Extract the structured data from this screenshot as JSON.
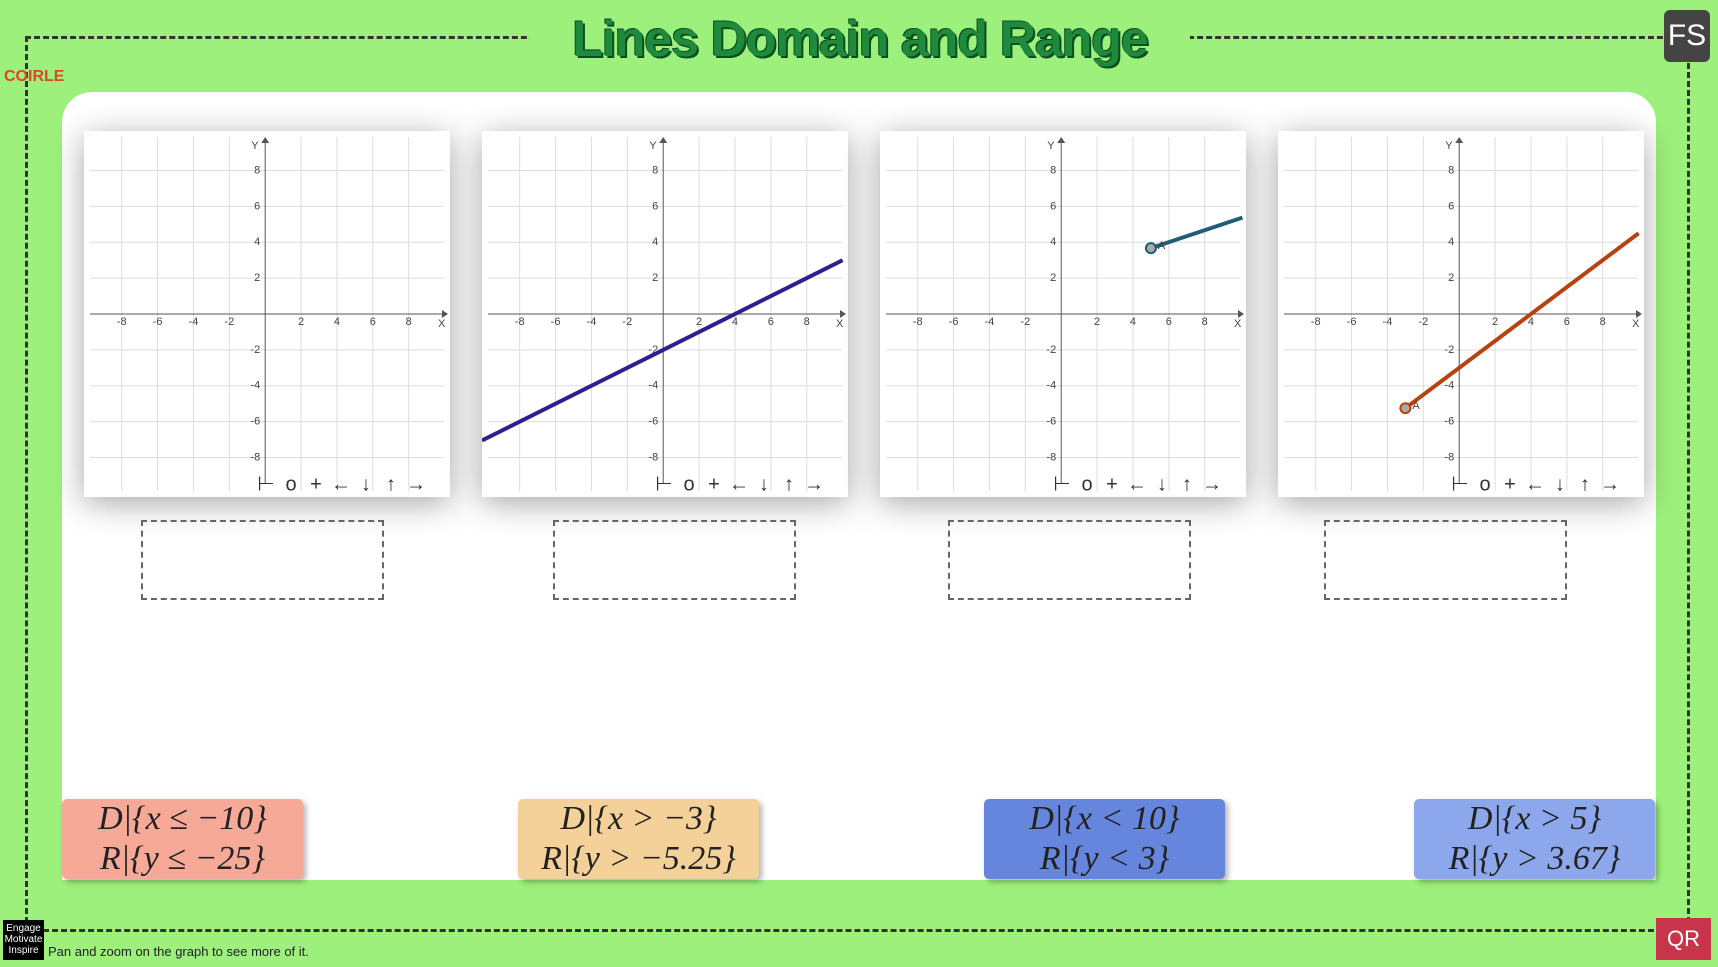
{
  "header": {
    "title": "Lines Domain and Range",
    "logo": "COIRLE",
    "fs_button": "FS"
  },
  "graphs": [
    {
      "x_label": "X",
      "y_label": "Y",
      "xlim": [
        -10.1,
        10.3
      ],
      "ylim": [
        -10.2,
        10.2
      ],
      "xticks": [
        -8,
        -6,
        -4,
        -2,
        2,
        4,
        6,
        8
      ],
      "yticks": [
        -8,
        -6,
        -4,
        -2,
        2,
        4,
        6,
        8
      ],
      "toolbar": [
        "⊢",
        "o",
        "+",
        "←",
        "↓",
        "↑",
        "→"
      ]
    },
    {
      "x_label": "X",
      "y_label": "Y",
      "xlim": [
        -10.1,
        10.3
      ],
      "ylim": [
        -10.2,
        10.2
      ],
      "xticks": [
        -8,
        -6,
        -4,
        -2,
        2,
        4,
        6,
        8
      ],
      "yticks": [
        -8,
        -6,
        -4,
        -2,
        2,
        4,
        6,
        8
      ],
      "toolbar": [
        "⊢",
        "o",
        "+",
        "←",
        "↓",
        "↑",
        "→"
      ],
      "line": {
        "x": [
          -10.1,
          10
        ],
        "y": [
          -7.05,
          3
        ],
        "color": "#2e1f8f"
      }
    },
    {
      "x_label": "X",
      "y_label": "Y",
      "xlim": [
        -10.1,
        10.3
      ],
      "ylim": [
        -10.2,
        10.2
      ],
      "xticks": [
        -8,
        -6,
        -4,
        -2,
        2,
        4,
        6,
        8
      ],
      "yticks": [
        -8,
        -6,
        -4,
        -2,
        2,
        4,
        6,
        8
      ],
      "toolbar": [
        "⊢",
        "o",
        "+",
        "←",
        "↓",
        "↑",
        "→"
      ],
      "line": {
        "x": [
          5,
          10.1
        ],
        "y": [
          3.67,
          5.37
        ],
        "color": "#1e5f78",
        "point_label": "A"
      }
    },
    {
      "x_label": "X",
      "y_label": "Y",
      "xlim": [
        -10.1,
        10.3
      ],
      "ylim": [
        -10.2,
        10.2
      ],
      "xticks": [
        -8,
        -6,
        -4,
        -2,
        2,
        4,
        6,
        8
      ],
      "yticks": [
        -8,
        -6,
        -4,
        -2,
        2,
        4,
        6,
        8
      ],
      "toolbar": [
        "⊢",
        "o",
        "+",
        "←",
        "↓",
        "↑",
        "→"
      ],
      "line": {
        "x": [
          -3,
          10
        ],
        "y": [
          -5.25,
          4.5
        ],
        "color": "#b8420e",
        "point_label": "A"
      }
    }
  ],
  "cards": [
    {
      "domain": "D|{x ≤ −10}",
      "range": "R|{y ≤ −25}",
      "color": "#f7a998"
    },
    {
      "domain": "D|{x > −3}",
      "range": "R|{y > −5.25}",
      "color": "#f3d199"
    },
    {
      "domain": "D|{x < 10}",
      "range": "R|{y < 3}",
      "color": "#6685dc"
    },
    {
      "domain": "D|{x > 5}",
      "range": "R|{y > 3.67}",
      "color": "#8ca7ec"
    }
  ],
  "footer": {
    "badge": [
      "Engage",
      "Motivate",
      "Inspire"
    ],
    "hint": "Pan and zoom on the graph to see more of it.",
    "qr_button": "QR"
  }
}
